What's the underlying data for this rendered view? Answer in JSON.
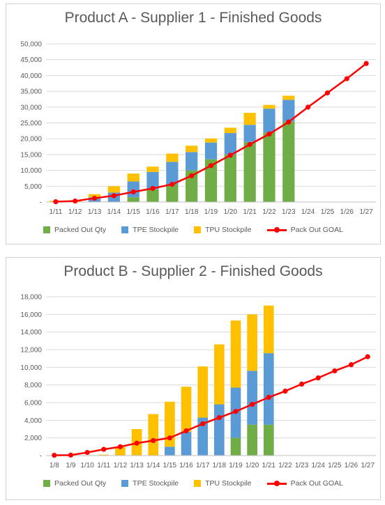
{
  "colors": {
    "packed": "#70ad47",
    "tpe": "#5b9bd5",
    "tpu": "#ffc000",
    "goal": "#ff0000",
    "grid": "#d9d9d9",
    "text": "#595959"
  },
  "legend": [
    "Packed Out Qty",
    "TPE Stockpile",
    "TPU Stockpile",
    "Pack Out GOAL"
  ],
  "chart_data": [
    {
      "type": "bar",
      "stacked": true,
      "title": "Product A - Supplier 1 - Finished Goods",
      "categories": [
        "1/11",
        "1/12",
        "1/13",
        "1/14",
        "1/15",
        "1/16",
        "1/17",
        "1/18",
        "1/19",
        "1/20",
        "1/21",
        "1/22",
        "1/23",
        "1/24",
        "1/25",
        "1/26",
        "1/27"
      ],
      "ylim": [
        0,
        50000
      ],
      "yticks": [
        "-",
        "5,000",
        "10,000",
        "15,000",
        "20,000",
        "25,000",
        "30,000",
        "35,000",
        "40,000",
        "45,000",
        "50,000"
      ],
      "grid": true,
      "legend_position": "bottom",
      "series": [
        {
          "name": "Packed Out Qty",
          "kind": "bar",
          "values": [
            0,
            0,
            0,
            0,
            1500,
            4000,
            5500,
            10000,
            13500,
            15000,
            19000,
            22000,
            25500,
            null,
            null,
            null,
            null
          ]
        },
        {
          "name": "TPE Stockpile",
          "kind": "bar",
          "values": [
            0,
            0,
            1500,
            3000,
            5000,
            5500,
            7200,
            5800,
            5300,
            6800,
            5400,
            7500,
            6800,
            null,
            null,
            null,
            null
          ]
        },
        {
          "name": "TPU Stockpile",
          "kind": "bar",
          "values": [
            400,
            300,
            1000,
            2000,
            2500,
            1700,
            2600,
            2000,
            1300,
            1700,
            3800,
            1200,
            1300,
            null,
            null,
            null,
            null
          ]
        },
        {
          "name": "Pack Out GOAL",
          "kind": "line",
          "values": [
            100,
            300,
            1200,
            2000,
            3200,
            4300,
            5600,
            8300,
            11500,
            14800,
            18200,
            21500,
            25300,
            30000,
            34500,
            39000,
            43800
          ]
        }
      ]
    },
    {
      "type": "bar",
      "stacked": true,
      "title": "Product B - Supplier 2 - Finished Goods",
      "categories": [
        "1/8",
        "1/9",
        "1/10",
        "1/11",
        "1/12",
        "1/13",
        "1/14",
        "1/15",
        "1/16",
        "1/17",
        "1/18",
        "1/19",
        "1/20",
        "1/21",
        "1/22",
        "1/23",
        "1/24",
        "1/25",
        "1/26",
        "1/27"
      ],
      "ylim": [
        0,
        18000
      ],
      "yticks": [
        "-",
        "2,000",
        "4,000",
        "6,000",
        "8,000",
        "10,000",
        "12,000",
        "14,000",
        "16,000",
        "18,000"
      ],
      "grid": true,
      "legend_position": "bottom",
      "series": [
        {
          "name": "Packed Out Qty",
          "kind": "bar",
          "values": [
            0,
            0,
            0,
            0,
            0,
            0,
            0,
            0,
            0,
            0,
            0,
            2000,
            3500,
            3500,
            null,
            null,
            null,
            null,
            null,
            null
          ]
        },
        {
          "name": "TPE Stockpile",
          "kind": "bar",
          "values": [
            0,
            0,
            0,
            0,
            0,
            0,
            0,
            1000,
            2700,
            4300,
            5800,
            5700,
            6100,
            8100,
            null,
            null,
            null,
            null,
            null,
            null
          ]
        },
        {
          "name": "TPU Stockpile",
          "kind": "bar",
          "values": [
            0,
            0,
            0,
            100,
            1000,
            3000,
            4700,
            5100,
            5100,
            5800,
            6800,
            7600,
            6400,
            5400,
            null,
            null,
            null,
            null,
            null,
            null
          ]
        },
        {
          "name": "Pack Out GOAL",
          "kind": "line",
          "values": [
            30,
            50,
            350,
            700,
            1000,
            1400,
            1700,
            2000,
            2800,
            3600,
            4300,
            5000,
            5800,
            6600,
            7300,
            8100,
            8800,
            9600,
            10300,
            11200
          ]
        }
      ]
    }
  ]
}
